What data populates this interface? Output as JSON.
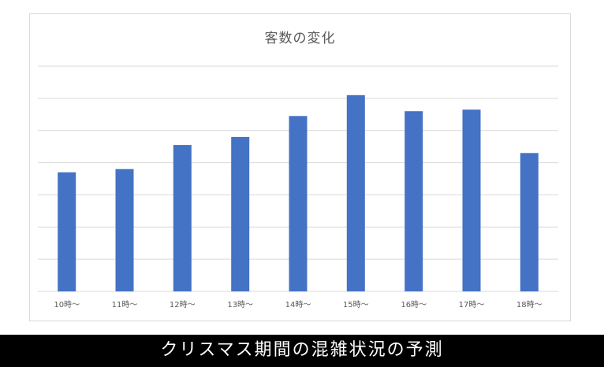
{
  "chart_data": {
    "type": "bar",
    "title": "客数の変化",
    "xlabel": "",
    "ylabel": "",
    "categories": [
      "10時〜",
      "11時〜",
      "12時〜",
      "13時〜",
      "14時〜",
      "15時〜",
      "16時〜",
      "17時〜",
      "18時〜"
    ],
    "values": [
      3.7,
      3.8,
      4.55,
      4.8,
      5.45,
      6.1,
      5.6,
      5.65,
      4.3
    ],
    "ylim": [
      0,
      7
    ],
    "grid": true,
    "y_tick_labels_visible": false,
    "bar_color": "#4472c4",
    "gridline_color": "#d9d9d9"
  },
  "caption": "クリスマス期間の混雑状況の予測"
}
